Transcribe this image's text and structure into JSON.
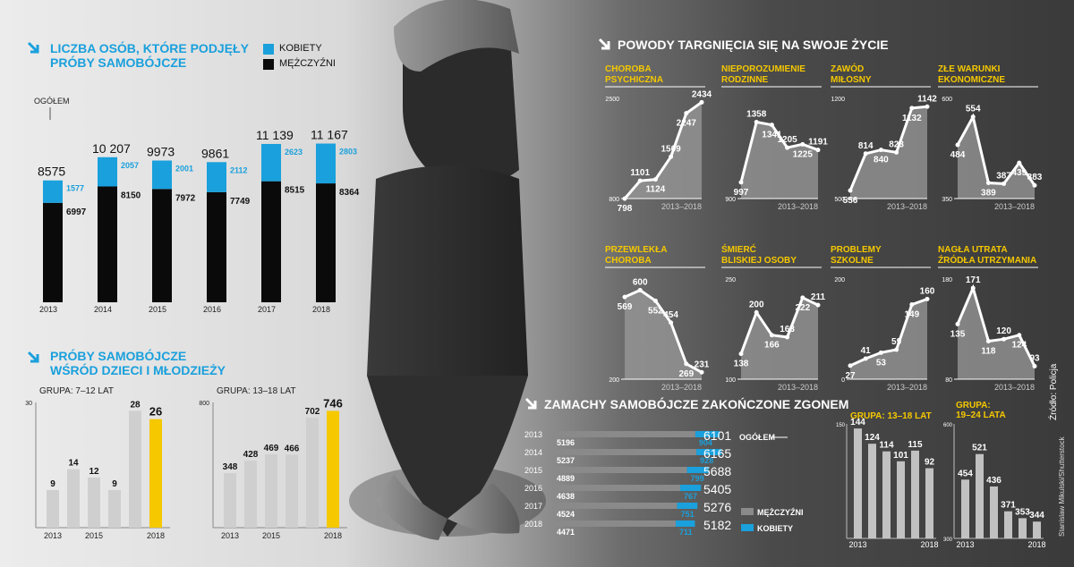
{
  "colors": {
    "blue": "#1aa0dc",
    "black": "#0a0a0a",
    "yellow": "#f5c800",
    "gray_bar": "#cfcfcf",
    "line_white": "#ffffff"
  },
  "section1": {
    "title_line1": "LICZBA OSÓB, KTÓRE PODJĘŁY",
    "title_line2": "PRÓBY SAMOBÓJCZE",
    "legend_women": "KOBIETY",
    "legend_men": "MĘŻCZYŹNI",
    "total_label": "OGÓŁEM"
  },
  "section2": {
    "title_line1": "PRÓBY SAMOBÓJCZE",
    "title_line2": "WŚRÓD DZIECI I MŁODZIEŻY"
  },
  "section3": {
    "title": "POWODY TARGNIĘCIA SIĘ NA SWOJE ŻYCIE"
  },
  "section4": {
    "title": "ZAMACHY SAMOBÓJCZE ZAKOŃCZONE ZGONEM",
    "total_label": "OGÓŁEM",
    "legend_men": "MĘŻCZYŹNI",
    "legend_women": "KOBIETY"
  },
  "source": "Źródło: Policja",
  "photo_credit": "Stanislaw Mikulski/Shutterstock",
  "chart_data": [
    {
      "id": "attempts",
      "type": "bar",
      "stacked": true,
      "categories": [
        "2013",
        "2014",
        "2015",
        "2016",
        "2017",
        "2018"
      ],
      "totals": [
        8575,
        10207,
        9973,
        9861,
        11139,
        11167
      ],
      "total_labels": [
        "8575",
        "10 207",
        "9973",
        "9861",
        "11 139",
        "11 167"
      ],
      "series": [
        {
          "name": "MĘŻCZYŹNI",
          "values": [
            6997,
            8150,
            7972,
            7749,
            8515,
            8364
          ]
        },
        {
          "name": "KOBIETY",
          "values": [
            1577,
            2057,
            2001,
            2112,
            2623,
            2803
          ]
        }
      ]
    },
    {
      "id": "kids712",
      "type": "bar",
      "title": "GRUPA: 7–12 LAT",
      "ylim": [
        0,
        30
      ],
      "yticks": [
        30
      ],
      "values": [
        9,
        14,
        12,
        9,
        28,
        26
      ],
      "xlabels": [
        "2013",
        "",
        "2015",
        "",
        "",
        "2018"
      ]
    },
    {
      "id": "kids1318",
      "type": "bar",
      "title": "GRUPA: 13–18 LAT",
      "ylim": [
        0,
        800
      ],
      "yticks": [
        800
      ],
      "values": [
        348,
        428,
        469,
        466,
        702,
        746
      ],
      "xlabels": [
        "2013",
        "",
        "2015",
        "",
        "",
        "2018"
      ]
    },
    {
      "id": "r1",
      "type": "area",
      "title_lines": [
        "CHOROBA",
        "PSYCHICZNA"
      ],
      "ylim": [
        800,
        2500
      ],
      "yticks": [
        2500,
        800
      ],
      "values": [
        798,
        1101,
        1124,
        1509,
        2247,
        2434
      ],
      "range": "2013–2018"
    },
    {
      "id": "r2",
      "type": "area",
      "title_lines": [
        "NIEPOROZUMIENIE",
        "RODZINNE"
      ],
      "ylim": [
        900,
        1500
      ],
      "yticks": [
        900
      ],
      "values": [
        997,
        1358,
        1341,
        1205,
        1225,
        1191
      ],
      "range": "2013–2018"
    },
    {
      "id": "r3",
      "type": "area",
      "title_lines": [
        "ZAWÓD",
        "MIŁOSNY"
      ],
      "ylim": [
        500,
        1200
      ],
      "yticks": [
        1200,
        500
      ],
      "values": [
        556,
        814,
        840,
        823,
        1132,
        1142
      ],
      "range": "2013–2018"
    },
    {
      "id": "r4",
      "type": "area",
      "title_lines": [
        "ZŁE WARUNKI",
        "EKONOMICZNE"
      ],
      "ylim": [
        350,
        600
      ],
      "yticks": [
        600,
        350
      ],
      "values": [
        484,
        554,
        389,
        387,
        439,
        383
      ],
      "range": "2013–2018"
    },
    {
      "id": "r5",
      "type": "area",
      "title_lines": [
        "PRZEWLEKŁA",
        "CHOROBA"
      ],
      "ylim": [
        200,
        650
      ],
      "yticks": [
        200
      ],
      "values": [
        569,
        600,
        552,
        454,
        269,
        231
      ],
      "range": "2013–2018"
    },
    {
      "id": "r6",
      "type": "area",
      "title_lines": [
        "ŚMIERĆ",
        "BLISKIEJ OSOBY"
      ],
      "ylim": [
        100,
        250
      ],
      "yticks": [
        250,
        100
      ],
      "values": [
        138,
        200,
        166,
        163,
        222,
        211
      ],
      "range": "2013–2018"
    },
    {
      "id": "r7",
      "type": "area",
      "title_lines": [
        "PROBLEMY",
        "SZKOLNE"
      ],
      "ylim": [
        0,
        200
      ],
      "yticks": [
        200,
        0
      ],
      "values": [
        27,
        41,
        53,
        59,
        149,
        160
      ],
      "range": "2013–2018"
    },
    {
      "id": "r8",
      "type": "area",
      "title_lines": [
        "NAGŁA UTRATA",
        "ŹRÓDŁA UTRZYMANIA"
      ],
      "ylim": [
        80,
        180
      ],
      "yticks": [
        180,
        80
      ],
      "values": [
        135,
        171,
        118,
        120,
        124,
        93
      ],
      "range": "2013–2018"
    },
    {
      "id": "deaths",
      "type": "bar",
      "stacked": true,
      "orientation": "horizontal",
      "categories": [
        "2013",
        "2014",
        "2015",
        "2016",
        "2017",
        "2018"
      ],
      "totals": [
        6101,
        6165,
        5688,
        5405,
        5276,
        5182
      ],
      "series": [
        {
          "name": "MĘŻCZYŹNI",
          "values": [
            5196,
            5237,
            4889,
            4638,
            4524,
            4471
          ]
        },
        {
          "name": "KOBIETY",
          "values": [
            904,
            928,
            799,
            767,
            751,
            711
          ]
        }
      ]
    },
    {
      "id": "d1318",
      "type": "bar",
      "title": "GRUPA: 13–18 LAT",
      "ylim": [
        0,
        150
      ],
      "yticks": [
        150
      ],
      "values": [
        144,
        124,
        114,
        101,
        115,
        92
      ],
      "xlabels": [
        "2013",
        "",
        "",
        "",
        "",
        "2018"
      ]
    },
    {
      "id": "d1924",
      "type": "bar",
      "title_lines": [
        "GRUPA:",
        "19–24 LATA"
      ],
      "ylim": [
        300,
        600
      ],
      "yticks": [
        600,
        300
      ],
      "values": [
        454,
        521,
        436,
        371,
        353,
        344
      ],
      "xlabels": [
        "2013",
        "",
        "",
        "",
        "",
        "2018"
      ]
    }
  ]
}
